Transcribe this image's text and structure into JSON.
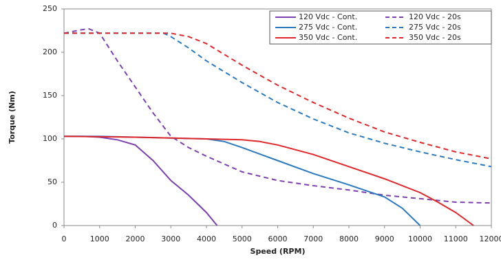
{
  "chart_data": {
    "type": "line",
    "x_label": "Speed (RPM)",
    "y_label": "Torque (Nm)",
    "xlim": [
      0,
      12000
    ],
    "xticks": [
      0,
      1000,
      2000,
      3000,
      4000,
      5000,
      6000,
      7000,
      8000,
      9000,
      10000,
      11000,
      12000
    ],
    "ylim": [
      0,
      250
    ],
    "yticks": [
      0,
      50,
      100,
      150,
      200,
      250
    ],
    "legend": "upper right",
    "series": [
      {
        "name": "120 Vdc - Cont.",
        "color": "#7b3fb0",
        "dashed": false,
        "x": [
          0,
          500,
          1000,
          1500,
          2000,
          2500,
          3000,
          3500,
          4000,
          4300
        ],
        "values": [
          103,
          103,
          102,
          99,
          93,
          75,
          52,
          35,
          15,
          0
        ]
      },
      {
        "name": "120 Vdc - 20s",
        "color": "#7b3fb0",
        "dashed": true,
        "x": [
          0,
          500,
          700,
          1000,
          1500,
          2000,
          2500,
          3000,
          3500,
          4000,
          5000,
          6000,
          7000,
          8000,
          9000,
          10000,
          11000,
          12000
        ],
        "values": [
          222,
          226,
          227,
          222,
          190,
          160,
          130,
          103,
          90,
          80,
          62,
          52,
          46,
          41,
          35,
          31,
          27,
          26
        ]
      },
      {
        "name": "275 Vdc - Cont.",
        "color": "#2a79c0",
        "dashed": false,
        "x": [
          0,
          1000,
          2000,
          3000,
          4000,
          4500,
          5000,
          6000,
          7000,
          8000,
          9000,
          9500,
          10000
        ],
        "values": [
          103,
          103,
          102,
          101,
          100,
          97,
          90,
          75,
          60,
          47,
          33,
          20,
          0
        ]
      },
      {
        "name": "275 Vdc - 20s",
        "color": "#2a79c0",
        "dashed": true,
        "x": [
          0,
          1000,
          2000,
          2800,
          3000,
          3500,
          4000,
          5000,
          6000,
          7000,
          8000,
          9000,
          10000,
          11000,
          12000
        ],
        "values": [
          222,
          222,
          222,
          222,
          218,
          205,
          190,
          165,
          142,
          123,
          107,
          95,
          85,
          76,
          68
        ]
      },
      {
        "name": "350 Vdc - Cont.",
        "color": "#e0262a",
        "dashed": false,
        "x": [
          0,
          2000,
          3000,
          4000,
          5000,
          5500,
          6000,
          7000,
          8000,
          9000,
          10000,
          10500,
          11000,
          11500
        ],
        "values": [
          103,
          102,
          101,
          100,
          99,
          97,
          93,
          82,
          68,
          54,
          38,
          27,
          15,
          0
        ]
      },
      {
        "name": "350 Vdc - 20s",
        "color": "#e0262a",
        "dashed": true,
        "x": [
          0,
          1000,
          2000,
          3000,
          3500,
          4000,
          5000,
          6000,
          7000,
          8000,
          9000,
          10000,
          11000,
          12000
        ],
        "values": [
          222,
          222,
          222,
          222,
          218,
          210,
          185,
          162,
          142,
          124,
          108,
          96,
          85,
          77
        ]
      }
    ]
  }
}
